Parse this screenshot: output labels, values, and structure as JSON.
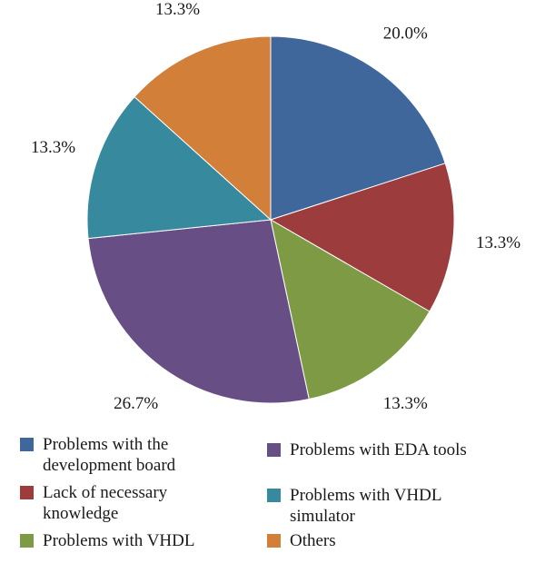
{
  "chart_data": {
    "type": "pie",
    "title": "",
    "slices": [
      {
        "label": "Problems with the development board",
        "value": 20.0,
        "value_label": "20.0%",
        "color": "#3f679b"
      },
      {
        "label": "Lack of necessary knowledge",
        "value": 13.3,
        "value_label": "13.3%",
        "color": "#9d3c3c"
      },
      {
        "label": "Problems with VHDL",
        "value": 13.3,
        "value_label": "13.3%",
        "color": "#7e9a45"
      },
      {
        "label": "Problems with EDA tools",
        "value": 26.7,
        "value_label": "26.7%",
        "color": "#674f86"
      },
      {
        "label": "Problems with VHDL simulator",
        "value": 13.3,
        "value_label": "13.3%",
        "color": "#378a9e"
      },
      {
        "label": "Others",
        "value": 13.3,
        "value_label": "13.3%",
        "color": "#d27f3a"
      }
    ],
    "start_angle": "12 o'clock",
    "direction": "clockwise",
    "legend_position": "bottom"
  },
  "legend": {
    "items": [
      {
        "lines": [
          "Problems with the",
          "development board"
        ],
        "color": "#3f679b"
      },
      {
        "lines": [
          "Problems with EDA tools"
        ],
        "color": "#674f86"
      },
      {
        "lines": [
          "Lack of necessary",
          "knowledge"
        ],
        "color": "#9d3c3c"
      },
      {
        "lines": [
          "Problems with VHDL",
          "simulator"
        ],
        "color": "#378a9e"
      },
      {
        "lines": [
          "Problems with VHDL"
        ],
        "color": "#7e9a45"
      },
      {
        "lines": [
          "Others"
        ],
        "color": "#d27f3a"
      }
    ]
  }
}
